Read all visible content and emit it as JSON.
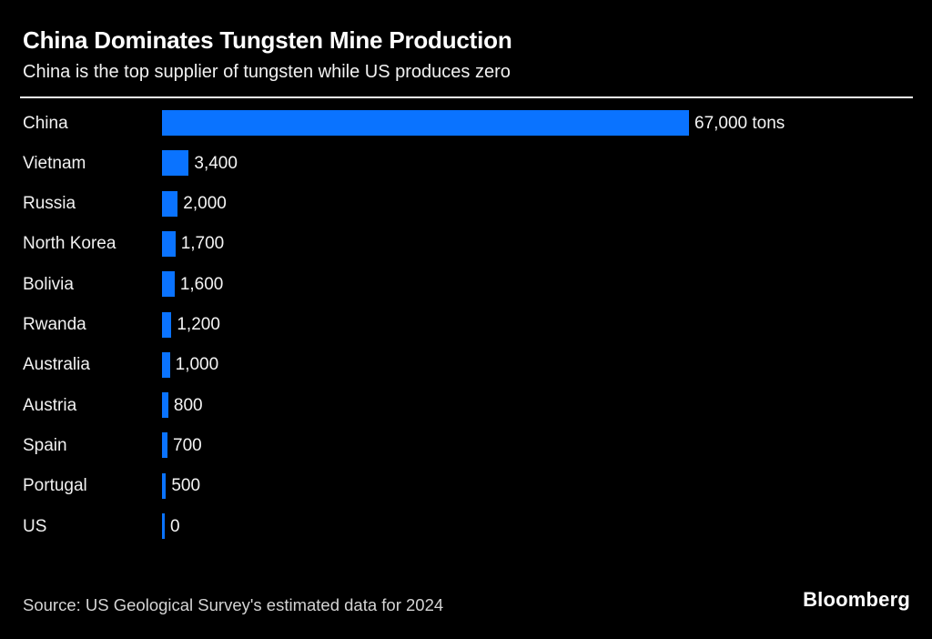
{
  "header": {
    "title": "China Dominates Tungsten Mine Production",
    "subtitle": "China is the top supplier of tungsten while US produces zero"
  },
  "chart_data": {
    "type": "bar",
    "orientation": "horizontal",
    "title": "China Dominates Tungsten Mine Production",
    "subtitle": "China is the top supplier of tungsten while US produces zero",
    "unit": "tons",
    "categories": [
      "China",
      "Vietnam",
      "Russia",
      "North Korea",
      "Bolivia",
      "Rwanda",
      "Australia",
      "Austria",
      "Spain",
      "Portugal",
      "US"
    ],
    "values": [
      67000,
      3400,
      2000,
      1700,
      1600,
      1200,
      1000,
      800,
      700,
      500,
      0
    ],
    "value_labels": [
      "67,000 tons",
      "3,400",
      "2,000",
      "1,700",
      "1,600",
      "1,200",
      "1,000",
      "800",
      "700",
      "500",
      "0"
    ],
    "xlim": [
      0,
      67000
    ],
    "grid": false,
    "legend": false,
    "bar_color": "#0a73ff",
    "source": "Source: US Geological Survey's estimated data for 2024"
  },
  "footer": {
    "source": "Source: US Geological Survey's estimated data for 2024",
    "brand": "Bloomberg"
  },
  "colors": {
    "background": "#000000",
    "bar": "#0a73ff",
    "title_text": "#ffffff",
    "body_text": "#f1f1f1",
    "source_text": "#d4d4d4",
    "separator": "#f5f5f5"
  }
}
